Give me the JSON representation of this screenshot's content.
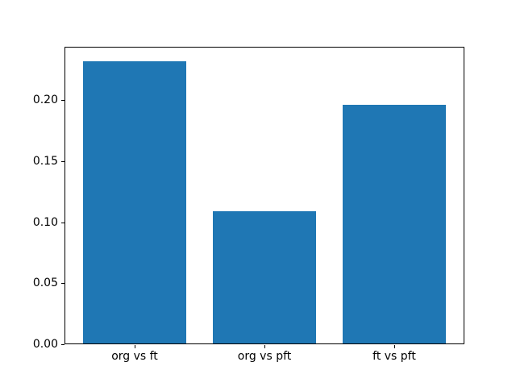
{
  "figure": {
    "background": "#ffffff",
    "title": ""
  },
  "chart_data": {
    "type": "bar",
    "categories": [
      "org vs ft",
      "org vs pft",
      "ft vs pft"
    ],
    "values": [
      0.232,
      0.109,
      0.196
    ],
    "title": "",
    "xlabel": "",
    "ylabel": "",
    "ylim": [
      0,
      0.2436
    ],
    "xlim": [
      -0.54,
      2.54
    ],
    "bar_width": 0.8,
    "bar_color": "#1f77b4",
    "spine_color": "#000000",
    "yticks": [
      0.0,
      0.05,
      0.1,
      0.15,
      0.2
    ],
    "ytick_labels": [
      "0.00",
      "0.05",
      "0.10",
      "0.15",
      "0.20"
    ],
    "grid": false,
    "legend": null
  }
}
